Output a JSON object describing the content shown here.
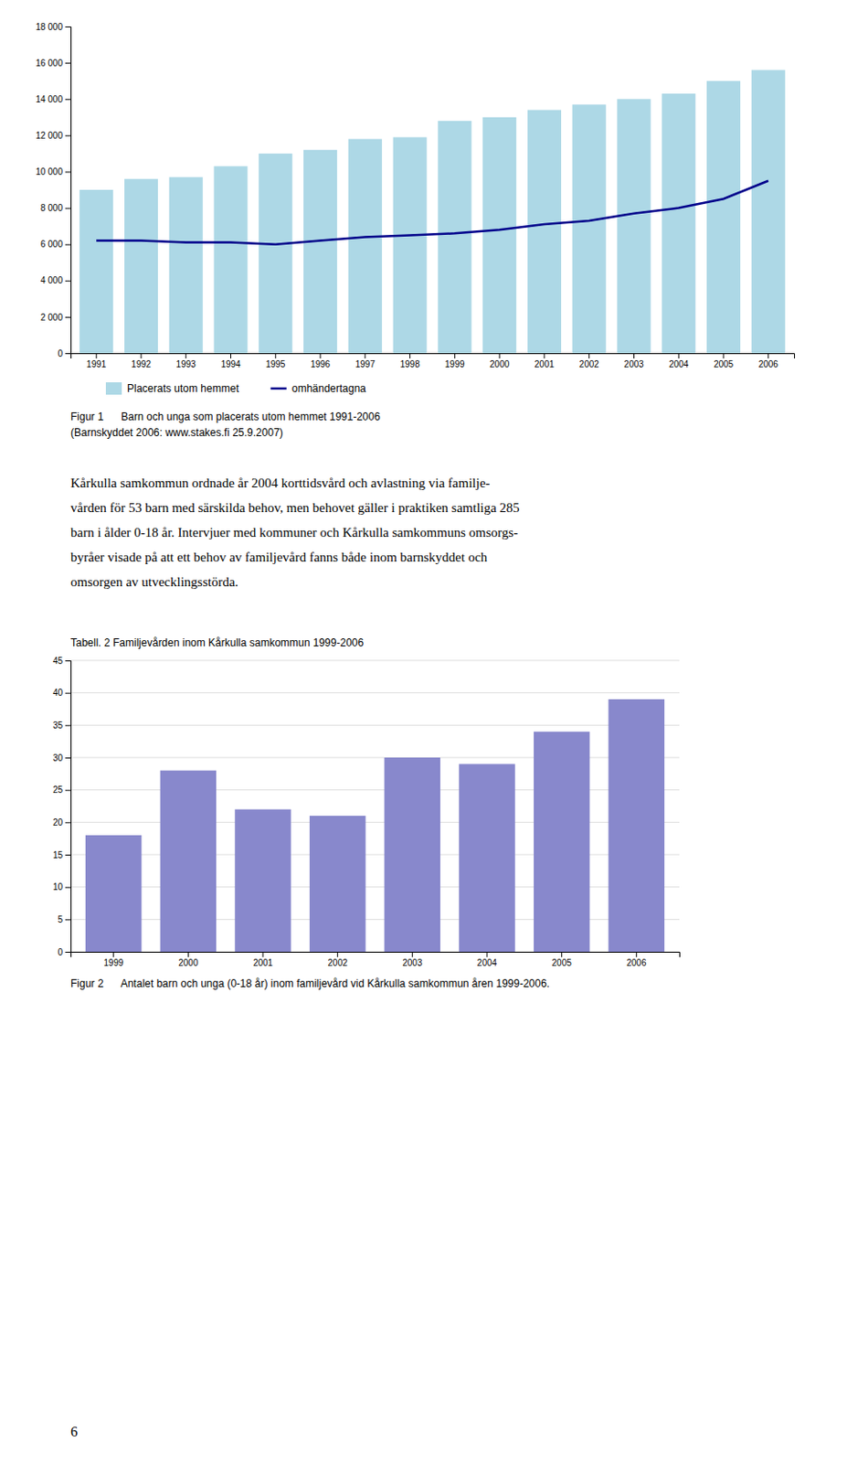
{
  "chart_data": [
    {
      "type": "bar",
      "categories": [
        1991,
        1992,
        1993,
        1994,
        1995,
        1996,
        1997,
        1998,
        1999,
        2000,
        2001,
        2002,
        2003,
        2004,
        2005,
        2006
      ],
      "series": [
        {
          "name": "Placerats utom hemmet",
          "type": "bar",
          "color": "#add8e6",
          "values": [
            9000,
            9600,
            9700,
            10300,
            11000,
            11200,
            11800,
            11900,
            12800,
            13000,
            13400,
            13700,
            14000,
            14300,
            15000,
            15600
          ]
        },
        {
          "name": "omhändertagna",
          "type": "line",
          "color": "#00008B",
          "values": [
            6200,
            6200,
            6100,
            6100,
            6000,
            6200,
            6400,
            6500,
            6600,
            6800,
            7100,
            7300,
            7700,
            8000,
            8500,
            9500
          ]
        }
      ],
      "ylim": [
        0,
        18000
      ],
      "yticks": [
        0,
        {
          "value": 2000,
          "label": "2 000"
        },
        {
          "value": 4000,
          "label": "4 000"
        },
        {
          "value": 6000,
          "label": "6 000"
        },
        {
          "value": 8000,
          "label": "8 000"
        },
        {
          "value": 10000,
          "label": "10 000"
        },
        {
          "value": 12000,
          "label": "12 000"
        },
        {
          "value": 14000,
          "label": "14 000"
        },
        {
          "value": 16000,
          "label": "16 000"
        },
        {
          "value": 18000,
          "label": "18 000"
        }
      ],
      "grid": false,
      "legend": "bottom",
      "annotations": [
        "Figur 1      Barn och unga som placerats utom hemmet 1991-2006",
        "(Barnskyddet 2006: www.stakes.fi 25.9.2007)"
      ]
    },
    {
      "type": "bar",
      "title": "Tabell. 2 Familjevården inom Kårkulla samkommun 1999-2006",
      "categories": [
        1999,
        2000,
        2001,
        2002,
        2003,
        2004,
        2005,
        2006
      ],
      "values": [
        18,
        28,
        22,
        21,
        30,
        29,
        34,
        39
      ],
      "color": "#8888cc",
      "ylim": [
        0,
        45
      ],
      "yticks": [
        0,
        5,
        10,
        15,
        20,
        25,
        30,
        35,
        40,
        45
      ],
      "grid": true,
      "annotations": [
        "Figur 2      Antalet barn och unga (0-18 år) inom familjevård vid Kårkulla samkommun åren 1999-2006."
      ]
    }
  ],
  "body_text": [
    "Kårkulla  samkommun  ordnade  år  2004  korttidsvård  och  avlastning  via  familje-",
    "vården för 53 barn med särskilda behov, men behovet gäller i praktiken samtliga 285",
    "barn i ålder 0-18 år. Intervjuer med kommuner och Kårkulla samkommuns omsorgs-",
    "byråer visade på att ett behov av familjevård fanns både inom barnskyddet och",
    "omsorgen av utvecklingsstörda."
  ],
  "page_number": "6"
}
